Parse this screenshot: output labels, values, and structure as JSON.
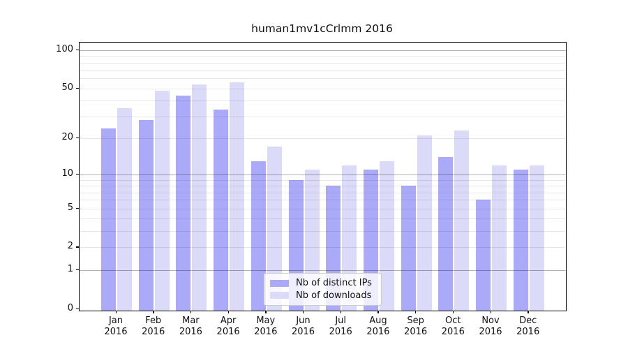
{
  "title": "human1mv1cCrlmm 2016",
  "colors": {
    "distinct_ips": "#aaaaf8",
    "downloads": "#dbdaf8",
    "major_grid": "rgba(0,0,0,0.30)",
    "minor_grid": "rgba(0,0,0,0.09)",
    "spine": "#000000",
    "text": "#111111",
    "legend_border": "#cccccc",
    "legend_bg": "rgba(255,255,255,0.8)"
  },
  "legend": {
    "position": "lower center",
    "items": [
      {
        "label": "Nb of distinct IPs",
        "color": "#aaaaf8"
      },
      {
        "label": "Nb of downloads",
        "color": "#dbdaf8"
      }
    ]
  },
  "chart_data": {
    "type": "bar",
    "title": "human1mv1cCrlmm 2016",
    "xlabel": "",
    "ylabel": "",
    "yscale": "log1p",
    "ylim": [
      0,
      116
    ],
    "yticks": [
      0,
      1,
      2,
      5,
      10,
      20,
      50,
      100
    ],
    "minor_gridlines": [
      2,
      3,
      4,
      5,
      6,
      7,
      8,
      9,
      20,
      30,
      40,
      50,
      60,
      70,
      80,
      90
    ],
    "major_gridlines": [
      1,
      10,
      100
    ],
    "grid": "horizontal gridlines drawn above bars",
    "categories": [
      "Jan",
      "Feb",
      "Mar",
      "Apr",
      "May",
      "Jun",
      "Jul",
      "Aug",
      "Sep",
      "Oct",
      "Nov",
      "Dec"
    ],
    "category_year": "2016",
    "series": [
      {
        "name": "Nb of distinct IPs",
        "color": "#aaaaf8",
        "values": [
          24,
          28,
          44,
          34,
          13,
          9,
          8,
          11,
          8,
          14,
          6,
          11
        ]
      },
      {
        "name": "Nb of downloads",
        "color": "#dbdaf8",
        "values": [
          35,
          48,
          54,
          56,
          17,
          11,
          12,
          13,
          21,
          23,
          12,
          12
        ]
      }
    ],
    "legend_position": "lower center"
  }
}
